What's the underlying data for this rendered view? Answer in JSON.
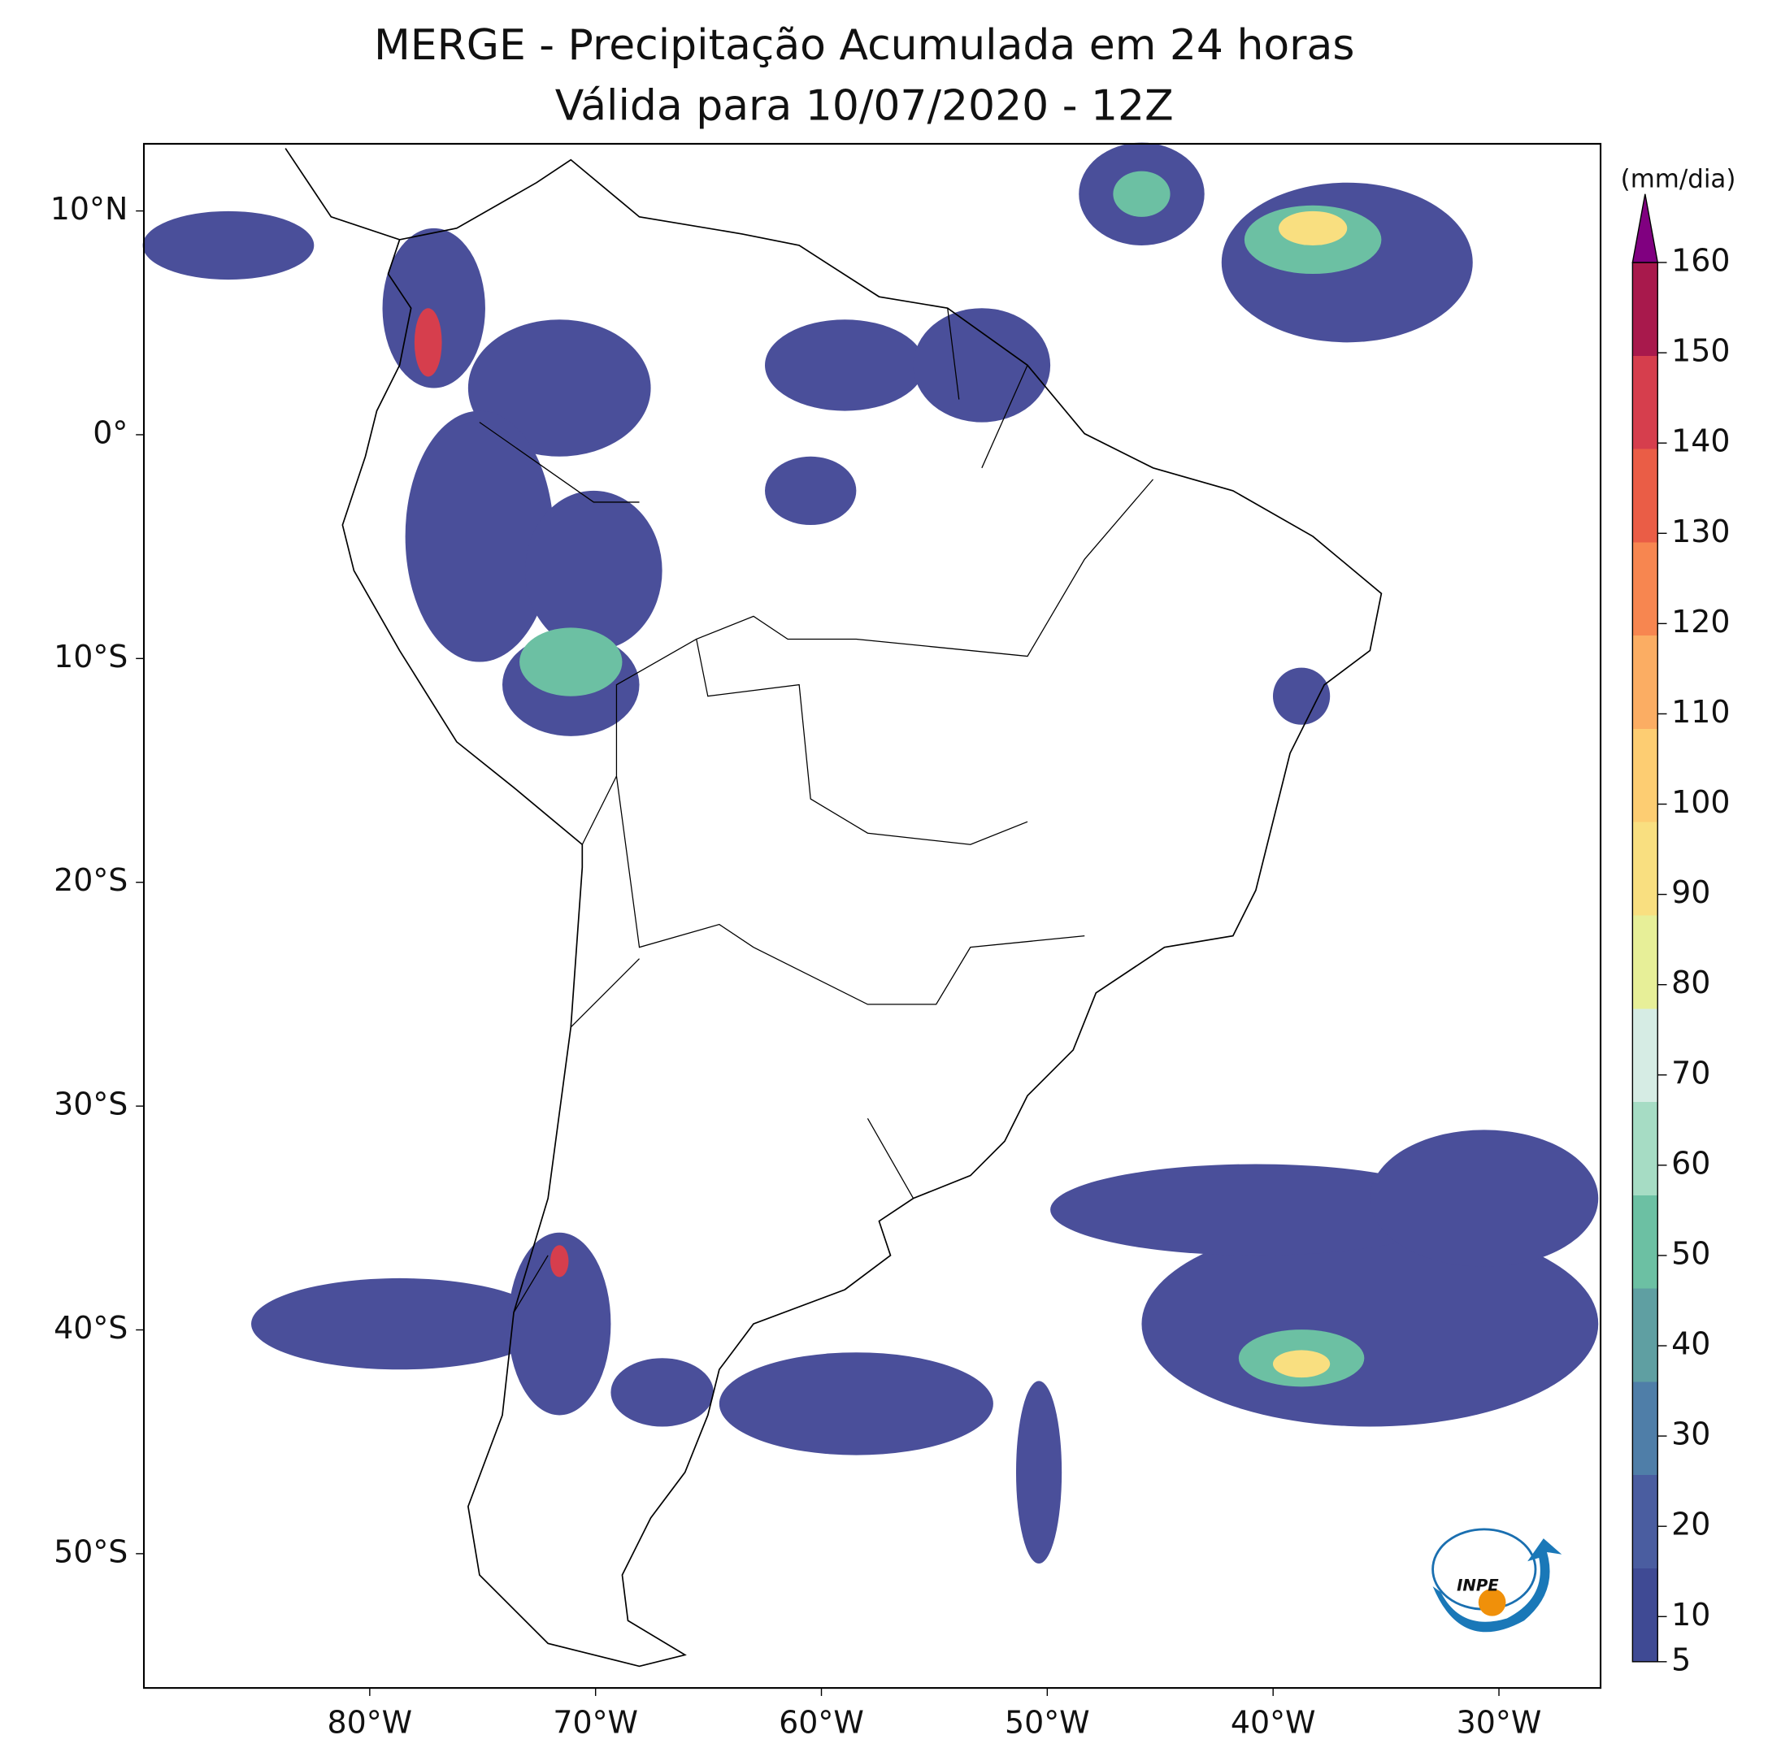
{
  "chart_data": {
    "type": "map",
    "title": "MERGE - Precipitação Acumulada em 24 horas",
    "subtitle": "Válida para 10/07/2020 - 12Z",
    "xlim": [
      -90,
      -25.5
    ],
    "ylim": [
      -56,
      13
    ],
    "xticks": [
      {
        "value": -80,
        "label": "80°W"
      },
      {
        "value": -70,
        "label": "70°W"
      },
      {
        "value": -60,
        "label": "60°W"
      },
      {
        "value": -50,
        "label": "50°W"
      },
      {
        "value": -40,
        "label": "40°W"
      },
      {
        "value": -30,
        "label": "30°W"
      }
    ],
    "yticks": [
      {
        "value": 10,
        "label": "10°N"
      },
      {
        "value": 0,
        "label": "0°"
      },
      {
        "value": -10,
        "label": "10°S"
      },
      {
        "value": -20,
        "label": "20°S"
      },
      {
        "value": -30,
        "label": "30°S"
      },
      {
        "value": -40,
        "label": "40°S"
      },
      {
        "value": -50,
        "label": "50°S"
      }
    ],
    "colorbar": {
      "label": "(mm/dia)",
      "lim": [
        5,
        160
      ],
      "ticks": [
        5,
        10,
        20,
        30,
        40,
        50,
        60,
        70,
        80,
        90,
        100,
        110,
        120,
        130,
        140,
        150,
        160
      ],
      "colors": [
        "#3f4a94",
        "#4a5da0",
        "#4f7ea8",
        "#5f9fa2",
        "#6cc0a3",
        "#a6dcc4",
        "#d6ece4",
        "#e7ef98",
        "#f9df80",
        "#fdcd72",
        "#fbad63",
        "#f78650",
        "#ea5d46",
        "#d63e4d",
        "#a8194c"
      ],
      "extend_color": "#800080"
    },
    "logo": "INPE"
  }
}
